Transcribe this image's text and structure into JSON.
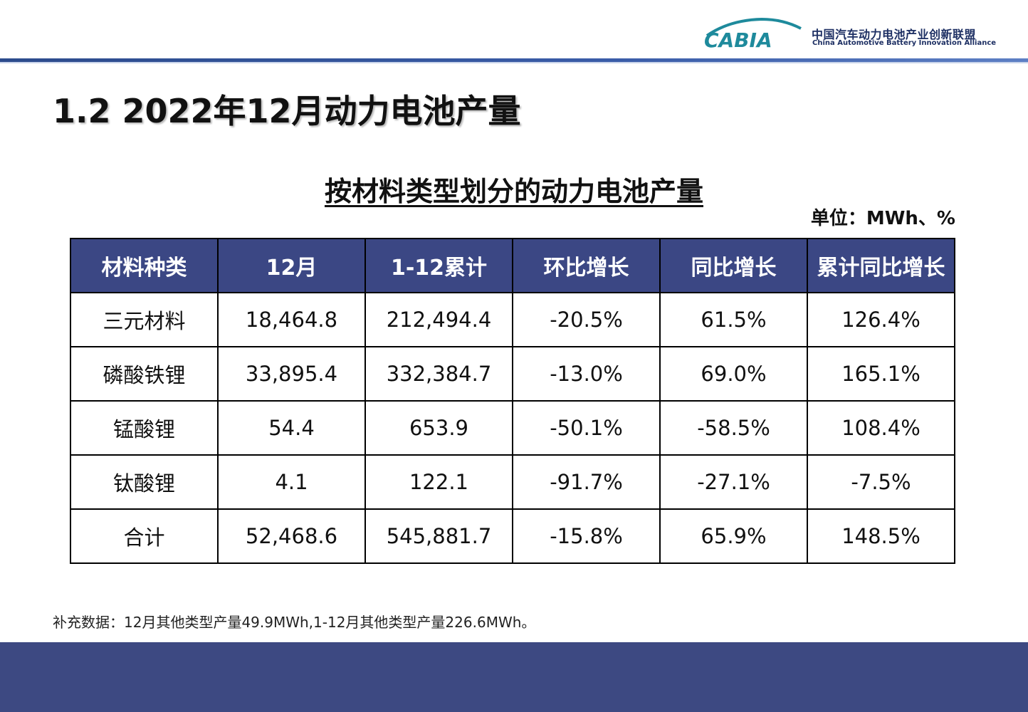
{
  "header": {
    "logo_text": "CABIA",
    "org_name_cn": "中国汽车动力电池产业创新联盟",
    "org_name_en": "China Automotive Battery Innovation Alliance",
    "brand_color": "#1e8a9c"
  },
  "page_title": "1.2 2022年12月动力电池产量",
  "table_title": "按材料类型划分的动力电池产量",
  "unit": "单位：MWh、%",
  "table": {
    "headers": [
      "材料种类",
      "12月",
      "1-12累计",
      "环比增长",
      "同比增长",
      "累计同比增长"
    ],
    "rows": [
      [
        "三元材料",
        "18,464.8",
        "212,494.4",
        "-20.5%",
        "61.5%",
        "126.4%"
      ],
      [
        "磷酸铁锂",
        "33,895.4",
        "332,384.7",
        "-13.0%",
        "69.0%",
        "165.1%"
      ],
      [
        "锰酸锂",
        "54.4",
        "653.9",
        "-50.1%",
        "-58.5%",
        "108.4%"
      ],
      [
        "钛酸锂",
        "4.1",
        "122.1",
        "-91.7%",
        "-27.1%",
        "-7.5%"
      ],
      [
        "合计",
        "52,468.6",
        "545,881.7",
        "-15.8%",
        "65.9%",
        "148.5%"
      ]
    ]
  },
  "note": "补充数据：12月其他类型产量49.9MWh,1-12月其他类型产量226.6MWh。",
  "colors": {
    "header_fill": "#3b4784",
    "footer_band": "#3d4982"
  }
}
